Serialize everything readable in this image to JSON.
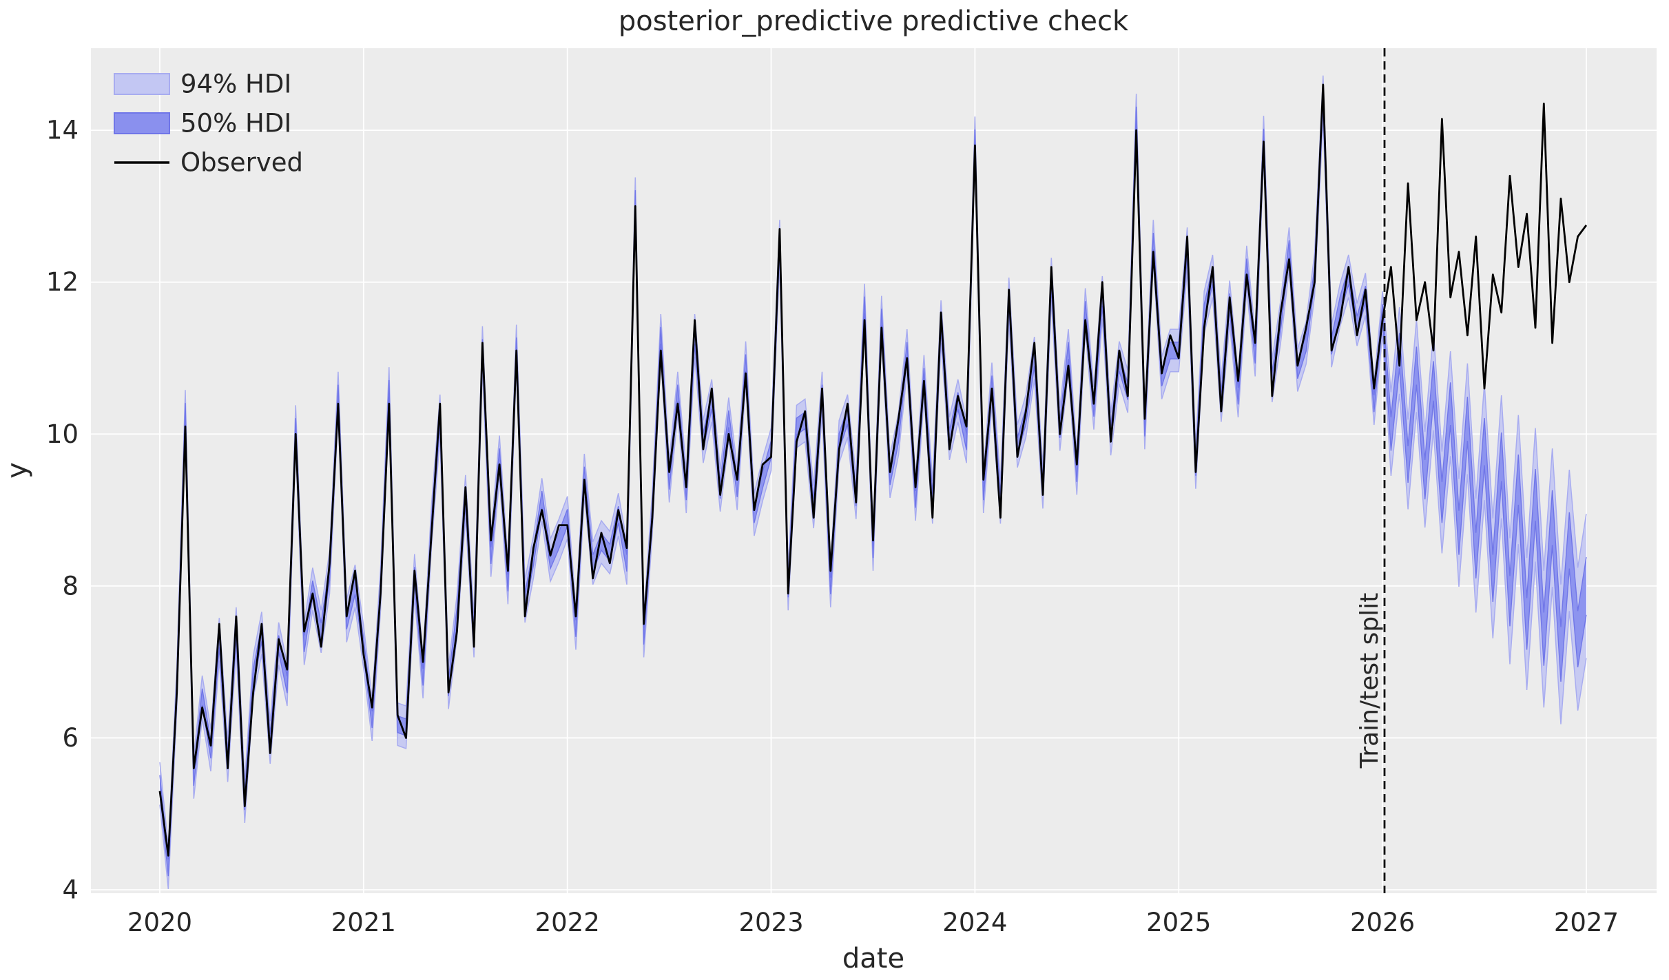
{
  "colors": {
    "figure_bg": "#ffffff",
    "axes_bg": "#ececec",
    "grid": "#ffffff",
    "observed": "#000000",
    "hdi94_fill": "#c3c7f3",
    "hdi94_edge": "#a8acf0",
    "hdi50_fill": "#8a90ee",
    "hdi50_edge": "#7076e8",
    "text": "#262626",
    "split_line": "#111111"
  },
  "chart_data": {
    "type": "line",
    "title": "posterior_predictive predictive check",
    "xlabel": "date",
    "ylabel": "y",
    "xlim": [
      2019.662,
      2027.345
    ],
    "ylim": [
      3.955,
      15.08
    ],
    "x_ticks": [
      2020,
      2021,
      2022,
      2023,
      2024,
      2025,
      2026,
      2027
    ],
    "y_ticks": [
      4,
      6,
      8,
      10,
      12,
      14
    ],
    "grid": true,
    "legend": {
      "position": "upper left",
      "entries": [
        {
          "label": "94% HDI",
          "swatch": "band-light"
        },
        {
          "label": "50% HDI",
          "swatch": "band-dark"
        },
        {
          "label": "Observed",
          "swatch": "line-black"
        }
      ]
    },
    "annotation": {
      "label": "Train/test split",
      "x": 2026.01,
      "style": "dashed-vertical"
    },
    "x_start": 2020.0,
    "x_step_years": 0.0416667,
    "n_points": 169,
    "split_index": 144,
    "observed": [
      5.3,
      4.45,
      6.6,
      10.1,
      5.6,
      6.4,
      5.9,
      7.5,
      5.6,
      7.6,
      5.1,
      6.6,
      7.5,
      5.8,
      7.3,
      6.9,
      10.0,
      7.4,
      7.9,
      7.2,
      8.3,
      10.4,
      7.6,
      8.2,
      7.1,
      6.4,
      7.9,
      10.4,
      6.3,
      6.0,
      8.2,
      7.0,
      8.7,
      10.4,
      6.6,
      7.4,
      9.3,
      7.2,
      11.2,
      8.6,
      9.6,
      8.2,
      11.1,
      7.6,
      8.5,
      9.0,
      8.4,
      8.8,
      8.8,
      7.6,
      9.4,
      8.1,
      8.7,
      8.3,
      9.0,
      8.5,
      13.0,
      7.5,
      8.9,
      11.1,
      9.5,
      10.4,
      9.3,
      11.5,
      9.8,
      10.6,
      9.2,
      10.0,
      9.4,
      10.8,
      9.0,
      9.6,
      9.7,
      12.7,
      7.9,
      9.9,
      10.3,
      8.9,
      10.6,
      8.2,
      9.8,
      10.4,
      9.1,
      11.5,
      8.6,
      11.4,
      9.5,
      10.2,
      11.0,
      9.3,
      10.7,
      8.9,
      11.6,
      9.8,
      10.5,
      10.1,
      13.8,
      9.4,
      10.6,
      8.9,
      11.9,
      9.7,
      10.3,
      11.2,
      9.2,
      12.2,
      10.0,
      10.9,
      9.6,
      11.5,
      10.4,
      12.0,
      9.9,
      11.1,
      10.5,
      14.0,
      10.2,
      12.4,
      10.8,
      11.3,
      11.0,
      12.6,
      9.5,
      11.4,
      12.2,
      10.3,
      11.8,
      10.7,
      12.1,
      11.2,
      13.85,
      10.5,
      11.6,
      12.3,
      10.9,
      11.4,
      12.0,
      14.6,
      11.1,
      11.5,
      12.2,
      11.3,
      11.9,
      10.6,
      11.5,
      12.2,
      10.9,
      13.3,
      11.5,
      12.0,
      11.1,
      14.15,
      11.8,
      12.4,
      11.3,
      12.6,
      10.6,
      12.1,
      11.6,
      13.4,
      12.2,
      12.9,
      11.4,
      14.35,
      11.2,
      13.1,
      12.0,
      12.6,
      12.75
    ],
    "pred_center_offset_cycle_train": [
      0.1,
      -0.16,
      0.06,
      0.2,
      -0.12,
      0.14,
      -0.06,
      -0.2
    ],
    "hdi94_half_train": 0.28,
    "hdi50_half_train": 0.11,
    "pred_median_test": [
      10.0,
      11.1,
      9.6,
      10.9,
      9.4,
      10.7,
      9.1,
      10.4,
      8.7,
      10.2,
      8.4,
      9.9,
      8.1,
      9.7,
      7.8,
      9.4,
      7.5,
      9.2,
      7.3,
      8.9,
      7.1,
      8.6,
      7.3,
      8.0
    ],
    "hdi94_half_test": [
      0.55,
      0.57,
      0.59,
      0.61,
      0.63,
      0.65,
      0.67,
      0.69,
      0.71,
      0.73,
      0.75,
      0.77,
      0.79,
      0.81,
      0.83,
      0.85,
      0.87,
      0.88,
      0.9,
      0.91,
      0.92,
      0.93,
      0.94,
      0.95
    ],
    "hdi50_half_test": [
      0.22,
      0.23,
      0.24,
      0.25,
      0.26,
      0.26,
      0.27,
      0.28,
      0.29,
      0.29,
      0.3,
      0.31,
      0.31,
      0.32,
      0.33,
      0.33,
      0.34,
      0.34,
      0.35,
      0.36,
      0.36,
      0.37,
      0.37,
      0.38
    ]
  }
}
